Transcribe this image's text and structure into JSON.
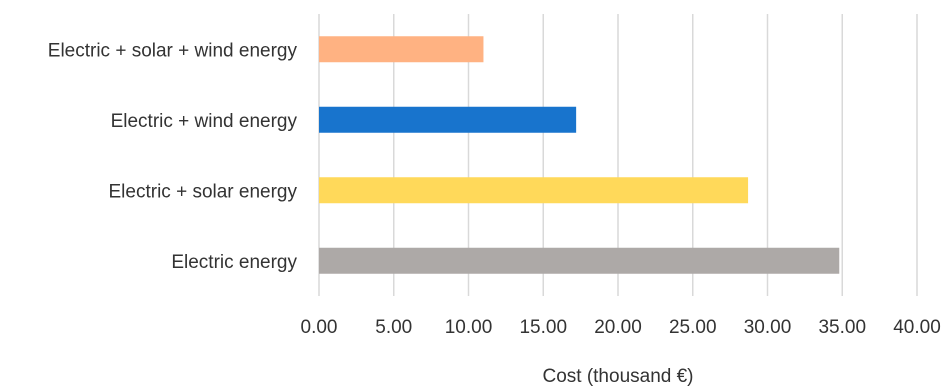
{
  "chart_data": {
    "type": "bar",
    "orientation": "horizontal",
    "categories": [
      "Electric energy",
      "Electric + solar energy",
      "Electric + wind energy",
      "Electric + solar + wind energy"
    ],
    "values": [
      34.8,
      28.7,
      17.2,
      11.0
    ],
    "colors": [
      "#ADA9A7",
      "#FFD95A",
      "#1874CD",
      "#FFB282"
    ],
    "xlabel": "Cost (thousand €)",
    "ylabel": "",
    "title": "",
    "xlim": [
      0,
      40
    ],
    "xticks": [
      "0.00",
      "5.00",
      "10.00",
      "15.00",
      "20.00",
      "25.00",
      "30.00",
      "35.00",
      "40.00"
    ],
    "grid": "vertical",
    "legend": "none"
  }
}
